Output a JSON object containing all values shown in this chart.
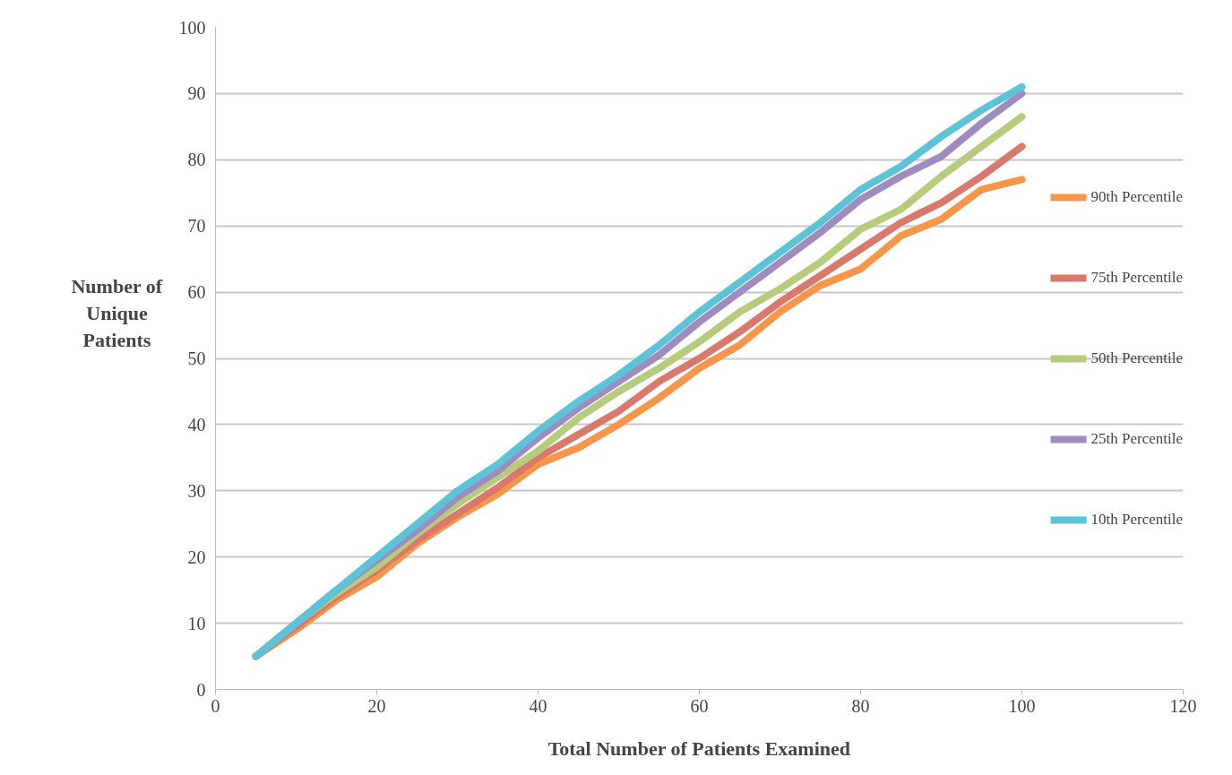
{
  "chart_data": {
    "type": "line",
    "xlabel": "Total Number of Patients Examined",
    "ylabel": "Number of Unique Patients",
    "x": [
      5,
      10,
      15,
      20,
      25,
      30,
      35,
      40,
      45,
      50,
      55,
      60,
      65,
      70,
      75,
      80,
      85,
      90,
      95,
      100
    ],
    "xlim": [
      0,
      120
    ],
    "xticks": [
      0,
      20,
      40,
      60,
      80,
      100,
      120
    ],
    "ylim": [
      0,
      100
    ],
    "yticks": [
      0,
      10,
      20,
      30,
      40,
      50,
      60,
      70,
      80,
      90,
      100
    ],
    "grid": "y",
    "legend": "right",
    "marker": "none",
    "line_style": "solid",
    "series": [
      {
        "name": "90th Percentile",
        "color": "#f79646",
        "values": [
          5,
          9,
          13.5,
          17,
          22,
          26,
          29.5,
          34,
          36.5,
          40,
          44,
          48.5,
          52,
          57,
          61,
          63.5,
          68.5,
          71,
          75.5,
          77
        ]
      },
      {
        "name": "75th Percentile",
        "color": "#d9786b",
        "values": [
          5,
          9.5,
          14,
          18,
          22.5,
          26.5,
          30.5,
          35,
          38.5,
          42,
          46.5,
          50,
          54,
          58.5,
          62.5,
          66.5,
          70.5,
          73.5,
          77.5,
          82
        ]
      },
      {
        "name": "50th Percentile",
        "color": "#b5cc7a",
        "values": [
          5,
          10,
          14.5,
          18.5,
          23.5,
          28,
          32,
          36,
          41,
          45,
          48.5,
          52.5,
          57,
          60.5,
          64.5,
          69.5,
          72.5,
          77.5,
          82,
          86.5
        ]
      },
      {
        "name": "25th Percentile",
        "color": "#a08bc0",
        "values": [
          5,
          10,
          15,
          19.5,
          24,
          29,
          33,
          38,
          42.5,
          46.5,
          50.5,
          55.5,
          60,
          64.5,
          69,
          74,
          77.5,
          80.5,
          85.5,
          90
        ]
      },
      {
        "name": "10th Percentile",
        "color": "#5bc4d8",
        "values": [
          5,
          10,
          15,
          20,
          25,
          30,
          34,
          39,
          43.5,
          47.5,
          52,
          57,
          61.5,
          66,
          70.5,
          75.5,
          79,
          83.5,
          87.5,
          91
        ]
      }
    ]
  }
}
